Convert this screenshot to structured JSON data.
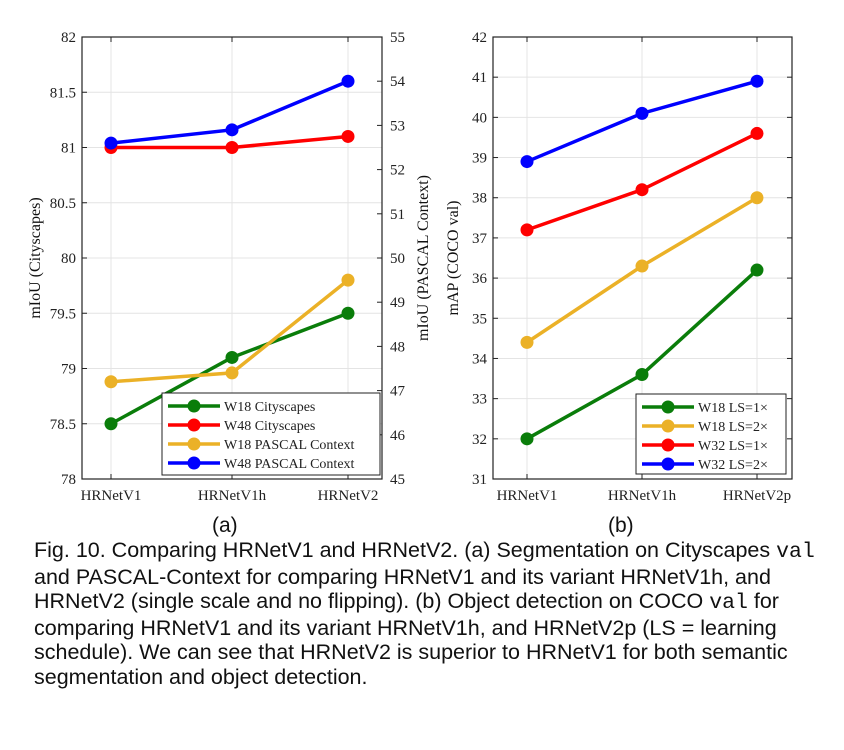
{
  "chart_data": [
    {
      "type": "line",
      "categories": [
        "HRNetV1",
        "HRNetV1h",
        "HRNetV2"
      ],
      "ylabel": "mIoU (Cityscapes)",
      "ylim": [
        78,
        82
      ],
      "yticks": [
        "78",
        "78.5",
        "79",
        "79.5",
        "80",
        "80.5",
        "81",
        "81.5",
        "82"
      ],
      "y2label": "mIoU (PASCAL Context)",
      "y2lim": [
        45,
        55
      ],
      "y2ticks": [
        "45",
        "46",
        "47",
        "48",
        "49",
        "50",
        "51",
        "52",
        "53",
        "54",
        "55"
      ],
      "grid": true,
      "legend": "bottom-right",
      "series": [
        {
          "name": "W18 Cityscapes",
          "axis": "left",
          "color": "#0a7d0a",
          "values": [
            78.5,
            79.1,
            79.5
          ]
        },
        {
          "name": "W48 Cityscapes",
          "axis": "left",
          "color": "#ff0000",
          "values": [
            81.0,
            81.0,
            81.1
          ]
        },
        {
          "name": "W18 PASCAL Context",
          "axis": "right",
          "color": "#ebb127",
          "values": [
            47.2,
            47.4,
            49.5
          ]
        },
        {
          "name": "W48 PASCAL Context",
          "axis": "right",
          "color": "#0000ff",
          "values": [
            52.6,
            52.9,
            54.0
          ]
        }
      ],
      "panel": "(a)"
    },
    {
      "type": "line",
      "categories": [
        "HRNetV1",
        "HRNetV1h",
        "HRNetV2p"
      ],
      "ylabel": "mAP (COCO val)",
      "ylim": [
        31,
        42
      ],
      "yticks": [
        "31",
        "32",
        "33",
        "34",
        "35",
        "36",
        "37",
        "38",
        "39",
        "40",
        "41",
        "42"
      ],
      "grid": true,
      "legend": "bottom-right",
      "series": [
        {
          "name": "W18 LS=1×",
          "color": "#0a7d0a",
          "values": [
            32.0,
            33.6,
            36.2
          ]
        },
        {
          "name": "W18 LS=2×",
          "color": "#ebb127",
          "values": [
            34.4,
            36.3,
            38.0
          ]
        },
        {
          "name": "W32 LS=1×",
          "color": "#ff0000",
          "values": [
            37.2,
            38.2,
            39.6
          ]
        },
        {
          "name": "W32 LS=2×",
          "color": "#0000ff",
          "values": [
            38.9,
            40.1,
            40.9
          ]
        }
      ],
      "panel": "(b)"
    }
  ],
  "caption": {
    "p1": "Fig. 10. Comparing HRNetV1 and HRNetV2. (a) Segmentation on Cityscapes ",
    "m1": "val",
    "p2": " and PASCAL-Context for comparing HRNetV1 and its variant HRNetV1h, and HRNetV2 (single scale and no flipping). (b) Object detection on COCO ",
    "m2": "val",
    "p3": " for comparing HRNetV1 and its variant HRNetV1h, and HRNetV2p (LS = learning schedule). We can see that HRNetV2 is superior to HRNetV1 for both semantic segmentation and object detection."
  }
}
